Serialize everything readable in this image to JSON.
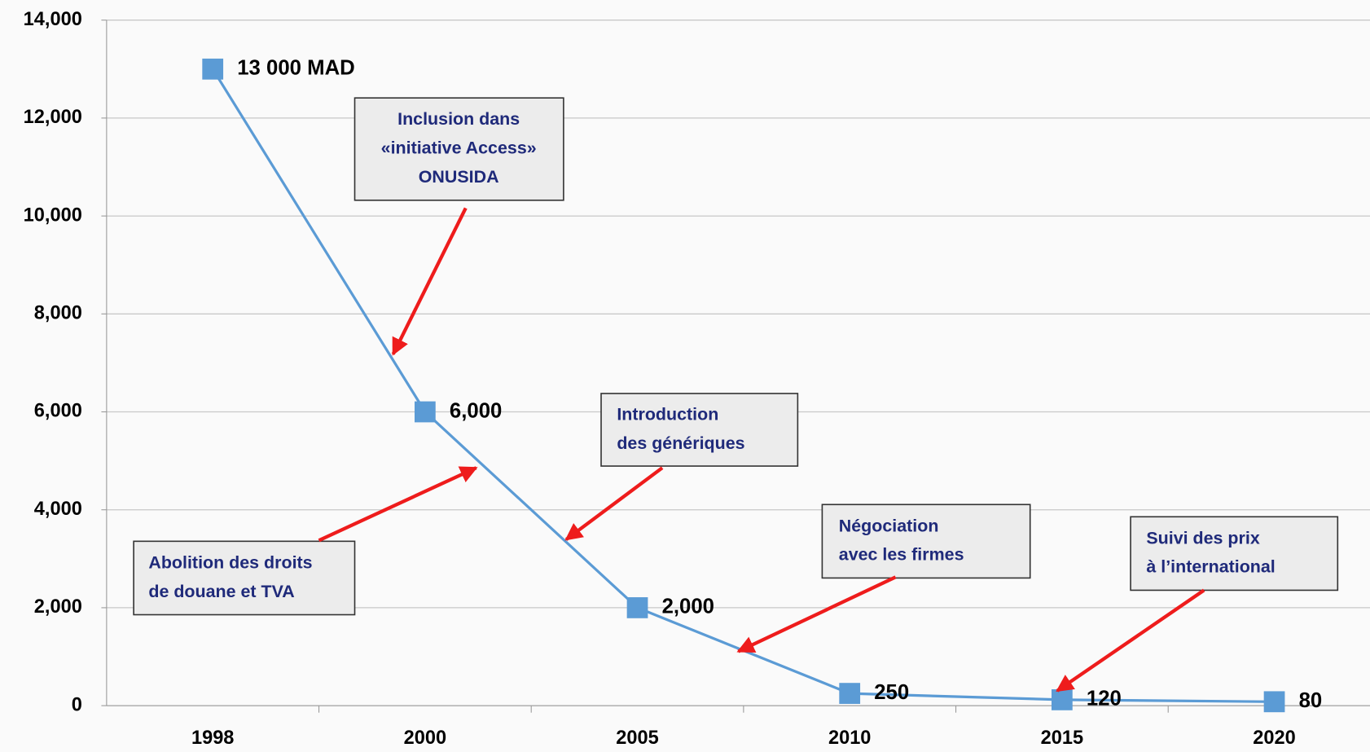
{
  "chart_data": {
    "type": "line",
    "categories": [
      "1998",
      "2000",
      "2005",
      "2010",
      "2015",
      "2020"
    ],
    "series": [
      {
        "name": null,
        "color": "#5b9bd5",
        "values": [
          13000,
          6000,
          2000,
          250,
          120,
          80
        ],
        "value_labels": [
          "13 000 MAD",
          "6,000",
          "2,000",
          "250",
          "120",
          "80"
        ]
      }
    ],
    "ylim": [
      0,
      14000
    ],
    "yticks": [
      0,
      {
        "value": 2000,
        "label": "2,000"
      },
      {
        "value": 4000,
        "label": "4,000"
      },
      {
        "value": 6000,
        "label": "6,000"
      },
      {
        "value": 8000,
        "label": "8,000"
      },
      {
        "value": 10000,
        "label": "10,000"
      },
      {
        "value": 12000,
        "label": "12,000"
      },
      {
        "value": 14000,
        "label": "14,000"
      }
    ],
    "grid": true,
    "annotations": [
      {
        "lines": [
          "Inclusion dans",
          "«initiative  Access»",
          "ONUSIDA"
        ]
      },
      {
        "lines": [
          "Introduction",
          "des  génériques"
        ]
      },
      {
        "lines": [
          "Abolition des droits",
          "de douane et TVA"
        ]
      },
      {
        "lines": [
          "Négociation",
          "avec les firmes"
        ]
      },
      {
        "lines": [
          "Suivi des prix",
          "à l’international"
        ]
      }
    ]
  }
}
